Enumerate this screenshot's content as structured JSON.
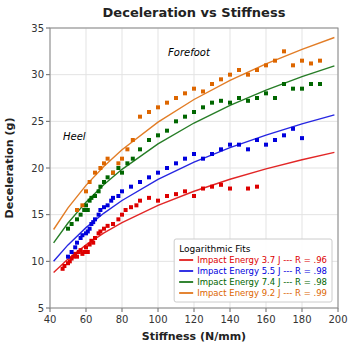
{
  "chart_data": {
    "type": "scatter",
    "title": "Deceleration vs Stiffness",
    "x_label": "Stiffness (N/mm)",
    "y_label": "Deceleration (g)",
    "xlim": [
      40,
      200
    ],
    "ylim": [
      5,
      35
    ],
    "xticks": [
      40,
      60,
      80,
      100,
      120,
      140,
      160,
      180,
      200
    ],
    "yticks": [
      5,
      10,
      15,
      20,
      25,
      30,
      35
    ],
    "grid": true,
    "legend": "lower right",
    "legend_title": "Logarithmic Fits",
    "marker": "square",
    "annotations": [
      {
        "text": "Forefoot"
      },
      {
        "text": "Heel"
      }
    ],
    "fit_x": [
      42,
      50,
      60,
      70,
      80,
      100,
      120,
      140,
      160,
      180,
      198
    ],
    "series": [
      {
        "name": "Impact Energy 3.7 J --- R = .96",
        "color": "#dd0000",
        "x": [
          47,
          48,
          50,
          51,
          52,
          53,
          54,
          55,
          56,
          57,
          58,
          59,
          60,
          61,
          62,
          63,
          64,
          65,
          67,
          68,
          70,
          72,
          75,
          78,
          80,
          82,
          85,
          88,
          90,
          95,
          100,
          105,
          110,
          115,
          120,
          125,
          130,
          135,
          140,
          150,
          155
        ],
        "values": [
          9.2,
          9.5,
          9.8,
          10.0,
          10.3,
          10.5,
          10.8,
          10.5,
          11.0,
          11.2,
          10.8,
          11.0,
          11.5,
          11.0,
          11.8,
          12.2,
          12.0,
          12.5,
          13.0,
          13.2,
          13.5,
          13.8,
          14.0,
          14.5,
          15.0,
          15.5,
          15.8,
          16.0,
          16.5,
          16.8,
          16.5,
          17.0,
          17.2,
          17.5,
          17.0,
          17.8,
          18.0,
          18.2,
          17.8,
          17.8,
          18.0
        ],
        "fit_values": [
          8.8,
          10.25,
          11.76,
          13.04,
          14.15,
          16.0,
          17.51,
          18.79,
          19.9,
          20.88,
          21.67
        ]
      },
      {
        "name": "Impact Energy 5.5 J --- R = .98",
        "color": "#0000dd",
        "x": [
          50,
          52,
          54,
          55,
          57,
          58,
          60,
          61,
          62,
          63,
          64,
          65,
          67,
          68,
          70,
          72,
          74,
          75,
          78,
          80,
          85,
          90,
          95,
          100,
          105,
          110,
          115,
          120,
          125,
          130,
          135,
          140,
          145,
          150,
          155,
          160,
          165,
          170,
          175,
          180
        ],
        "values": [
          10.5,
          11.0,
          11.5,
          12.0,
          12.5,
          12.8,
          13.0,
          13.2,
          13.5,
          14.0,
          14.2,
          14.5,
          15.0,
          15.5,
          15.8,
          16.0,
          16.5,
          16.8,
          17.0,
          17.5,
          18.0,
          18.5,
          19.0,
          19.5,
          20.0,
          20.5,
          21.0,
          21.5,
          21.0,
          21.5,
          22.0,
          22.5,
          22.5,
          22.0,
          23.0,
          22.5,
          23.0,
          23.5,
          24.2,
          23.2
        ],
        "fit_values": [
          10.0,
          11.76,
          13.61,
          15.17,
          16.52,
          18.78,
          20.62,
          22.18,
          23.53,
          24.73,
          25.69
        ]
      },
      {
        "name": "Impact Energy 7.4 J --- R = .98",
        "color": "#006600",
        "x": [
          50,
          52,
          55,
          57,
          59,
          60,
          61,
          62,
          63,
          65,
          67,
          68,
          70,
          72,
          75,
          78,
          80,
          83,
          86,
          90,
          95,
          100,
          105,
          110,
          115,
          120,
          125,
          130,
          135,
          140,
          145,
          150,
          155,
          160,
          165,
          170,
          175,
          180,
          185,
          190
        ],
        "values": [
          13.5,
          14.0,
          14.5,
          15.0,
          15.5,
          16.0,
          15.5,
          16.5,
          16.8,
          17.0,
          17.5,
          18.0,
          18.5,
          19.0,
          19.5,
          20.0,
          19.5,
          20.5,
          21.0,
          22.0,
          23.0,
          23.5,
          24.0,
          25.0,
          25.5,
          26.0,
          26.5,
          27.0,
          27.2,
          27.0,
          27.5,
          27.2,
          27.5,
          28.0,
          27.5,
          29.0,
          28.5,
          28.5,
          29.0,
          29.0
        ],
        "fit_values": [
          11.97,
          14.11,
          16.34,
          18.23,
          19.86,
          22.59,
          24.82,
          26.71,
          28.34,
          29.79,
          30.95
        ]
      },
      {
        "name": "Impact Energy 9.2 J --- R = .99",
        "color": "#dd6600",
        "x": [
          55,
          58,
          60,
          62,
          65,
          68,
          70,
          72,
          75,
          78,
          80,
          83,
          86,
          90,
          95,
          100,
          105,
          110,
          115,
          120,
          125,
          130,
          135,
          140,
          145,
          150,
          155,
          160,
          165,
          170,
          175,
          180,
          185,
          190
        ],
        "values": [
          15.5,
          16.0,
          17.5,
          18.5,
          19.5,
          20.0,
          20.5,
          21.0,
          19.5,
          20.5,
          21.0,
          22.0,
          23.0,
          25.5,
          26.0,
          26.5,
          27.0,
          27.5,
          28.0,
          28.5,
          28.2,
          29.0,
          29.5,
          30.0,
          30.5,
          30.0,
          30.5,
          31.0,
          31.5,
          32.5,
          31.0,
          31.5,
          31.2,
          31.5
        ],
        "fit_values": [
          13.41,
          15.73,
          18.14,
          20.19,
          21.96,
          24.92,
          27.34,
          29.38,
          31.15,
          32.71,
          33.98
        ]
      }
    ]
  }
}
